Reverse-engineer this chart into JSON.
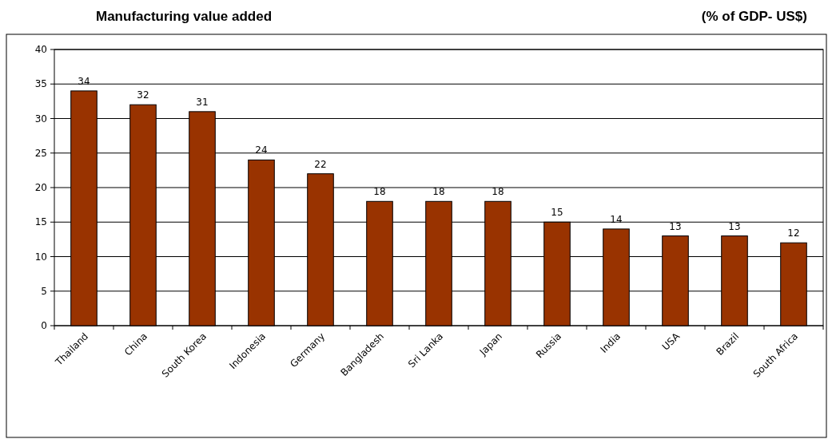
{
  "chart_data": {
    "type": "bar",
    "title": "Manufacturing value added",
    "subtitle": "(% of GDP- US$)",
    "categories": [
      "Thailand",
      "China",
      "South Korea",
      "Indonesia",
      "Germany",
      "Bangladesh",
      "Sri Lanka",
      "Japan",
      "Russia",
      "India",
      "USA",
      "Brazil",
      "South Africa"
    ],
    "values": [
      34,
      32,
      31,
      24,
      22,
      18,
      18,
      18,
      15,
      14,
      13,
      13,
      12
    ],
    "color": "#993300",
    "ylim": [
      0,
      40
    ],
    "yticks": [
      0,
      5,
      10,
      15,
      20,
      25,
      30,
      35,
      40
    ],
    "grid": "y",
    "data_labels": true
  }
}
